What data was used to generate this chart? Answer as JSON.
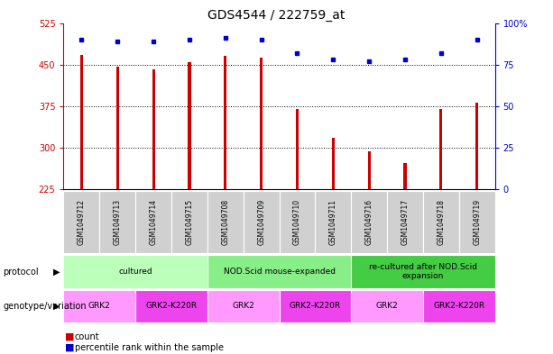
{
  "title": "GDS4544 / 222759_at",
  "samples": [
    "GSM1049712",
    "GSM1049713",
    "GSM1049714",
    "GSM1049715",
    "GSM1049708",
    "GSM1049709",
    "GSM1049710",
    "GSM1049711",
    "GSM1049716",
    "GSM1049717",
    "GSM1049718",
    "GSM1049719"
  ],
  "counts": [
    468,
    447,
    441,
    455,
    466,
    462,
    370,
    318,
    293,
    272,
    370,
    381
  ],
  "percentile_ranks": [
    90,
    89,
    89,
    90,
    91,
    90,
    82,
    78,
    77,
    78,
    82,
    90
  ],
  "ylim_left": [
    225,
    525
  ],
  "ylim_right": [
    0,
    100
  ],
  "yticks_left": [
    225,
    300,
    375,
    450,
    525
  ],
  "yticks_right": [
    0,
    25,
    50,
    75,
    100
  ],
  "bar_color": "#cc0000",
  "dot_color": "#0000cc",
  "bar_width": 0.08,
  "grid_color": "#000000",
  "protocol_groups": [
    {
      "label": "cultured",
      "start": 0,
      "end": 3,
      "color": "#bbffbb"
    },
    {
      "label": "NOD.Scid mouse-expanded",
      "start": 4,
      "end": 7,
      "color": "#88ee88"
    },
    {
      "label": "re-cultured after NOD.Scid\nexpansion",
      "start": 8,
      "end": 11,
      "color": "#44cc44"
    }
  ],
  "genotype_groups": [
    {
      "label": "GRK2",
      "start": 0,
      "end": 1,
      "color": "#ff99ff"
    },
    {
      "label": "GRK2-K220R",
      "start": 2,
      "end": 3,
      "color": "#ee44ee"
    },
    {
      "label": "GRK2",
      "start": 4,
      "end": 5,
      "color": "#ff99ff"
    },
    {
      "label": "GRK2-K220R",
      "start": 6,
      "end": 7,
      "color": "#ee44ee"
    },
    {
      "label": "GRK2",
      "start": 8,
      "end": 9,
      "color": "#ff99ff"
    },
    {
      "label": "GRK2-K220R",
      "start": 10,
      "end": 11,
      "color": "#ee44ee"
    }
  ],
  "left_axis_color": "#cc0000",
  "right_axis_color": "#0000cc",
  "tick_label_fontsize": 7,
  "title_fontsize": 10,
  "sample_label_fontsize": 5.5,
  "table_fontsize": 6.5,
  "legend_fontsize": 7
}
